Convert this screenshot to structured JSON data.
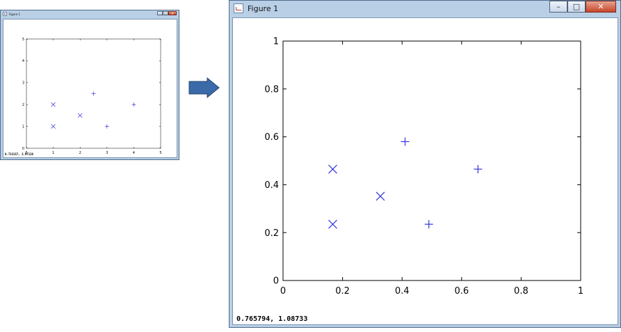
{
  "colors": {
    "marker": "#3333dd",
    "window_frame": "#b9cfe6",
    "arrow": "#3b6aa8"
  },
  "arrow_icon": "right-arrow-icon",
  "small_window": {
    "title": "Figure 1",
    "status_coords": "0.723157, 3.97138",
    "controls": {
      "minimize": "–",
      "maximize": "□",
      "close": "✕"
    }
  },
  "large_window": {
    "title": "Figure 1",
    "status_coords": "0.765794, 1.08733",
    "controls": {
      "minimize": "–",
      "maximize": "□",
      "close": "✕"
    }
  },
  "chart_data": [
    {
      "type": "scatter",
      "title": "",
      "xlabel": "",
      "ylabel": "",
      "xlim": [
        0,
        5
      ],
      "ylim": [
        0,
        5
      ],
      "x_ticks": [
        "0",
        "1",
        "2",
        "3",
        "4",
        "5"
      ],
      "y_ticks": [
        "0",
        "1",
        "2",
        "3",
        "4",
        "5"
      ],
      "grid": false,
      "series": [
        {
          "marker": "x",
          "x": [
            1,
            1,
            2
          ],
          "y": [
            2,
            1,
            1.5
          ]
        },
        {
          "marker": "+",
          "x": [
            2.5,
            3,
            4
          ],
          "y": [
            2.5,
            1,
            2
          ]
        }
      ]
    },
    {
      "type": "scatter",
      "title": "",
      "xlabel": "",
      "ylabel": "",
      "xlim": [
        0,
        1
      ],
      "ylim": [
        0,
        1
      ],
      "x_ticks": [
        "0",
        "0.2",
        "0.4",
        "0.6",
        "0.8",
        "1"
      ],
      "y_ticks": [
        "0",
        "0.2",
        "0.4",
        "0.6",
        "0.8",
        "1"
      ],
      "grid": false,
      "series": [
        {
          "marker": "x",
          "x": [
            0.167,
            0.167,
            0.327
          ],
          "y": [
            0.465,
            0.235,
            0.352
          ]
        },
        {
          "marker": "+",
          "x": [
            0.41,
            0.49,
            0.655
          ],
          "y": [
            0.58,
            0.235,
            0.465
          ]
        }
      ]
    }
  ]
}
